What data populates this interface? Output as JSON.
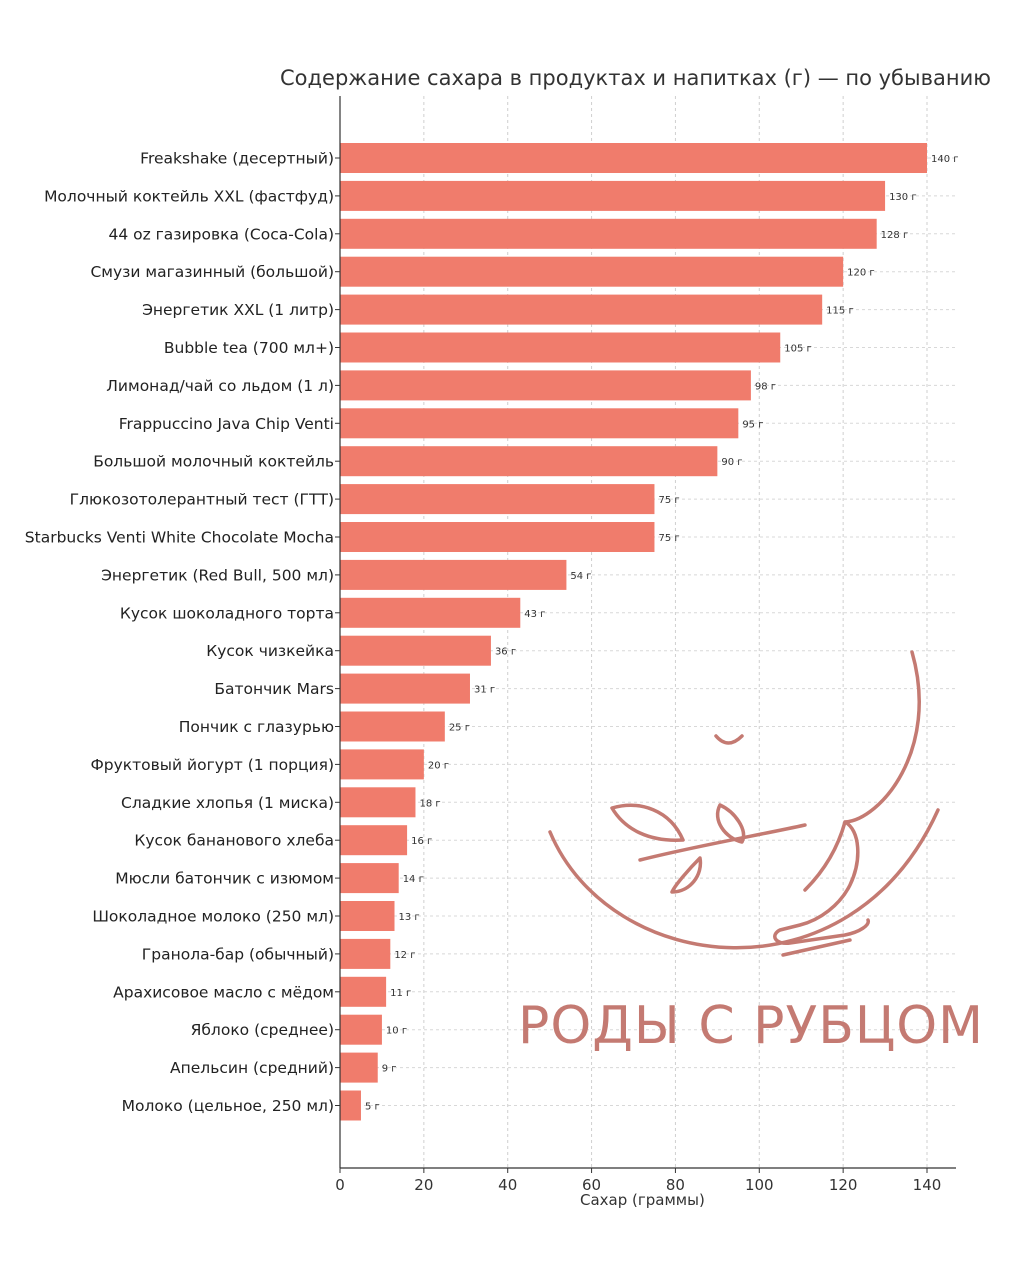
{
  "chart_data": {
    "type": "bar",
    "orientation": "horizontal",
    "title": "Содержание сахара в продуктах и напитках (г) — по убыванию",
    "xlabel": "Сахар (граммы)",
    "ylabel": "",
    "xlim": [
      0,
      147
    ],
    "xticks": [
      0,
      20,
      40,
      60,
      80,
      100,
      120,
      140
    ],
    "grid": true,
    "bar_color": "#f07c6c",
    "value_suffix": " г",
    "categories": [
      "Freakshake (десертный)",
      "Молочный коктейль XXL (фастфуд)",
      "44 oz газировка (Coca-Cola)",
      "Смузи магазинный (большой)",
      "Энергетик XXL (1 литр)",
      "Bubble tea (700 мл+)",
      "Лимонад/чай со льдом (1 л)",
      "Frappuccino Java Chip Venti",
      "Большой молочный коктейль",
      "Глюкозотолерантный тест (ГТТ)",
      "Starbucks Venti White Chocolate Mocha",
      "Энергетик (Red Bull, 500 мл)",
      "Кусок шоколадного торта",
      "Кусок чизкейка",
      "Батончик Mars",
      "Пончик с глазурью",
      "Фруктовый йогурт (1 порция)",
      "Сладкие хлопья (1 миска)",
      "Кусок бананового хлеба",
      "Мюсли батончик с изюмом",
      "Шоколадное молоко (250 мл)",
      "Гранола-бар (обычный)",
      "Арахисовое масло с мёдом",
      "Яблоко (среднее)",
      "Апельсин (средний)",
      "Молоко (цельное, 250 мл)"
    ],
    "values": [
      140,
      130,
      128,
      120,
      115,
      105,
      98,
      95,
      90,
      75,
      75,
      54,
      43,
      36,
      31,
      25,
      20,
      18,
      16,
      14,
      13,
      12,
      11,
      10,
      9,
      5
    ]
  },
  "watermark": {
    "text": "РОДЫ С РУБЦОМ",
    "color": "#c47a72"
  }
}
